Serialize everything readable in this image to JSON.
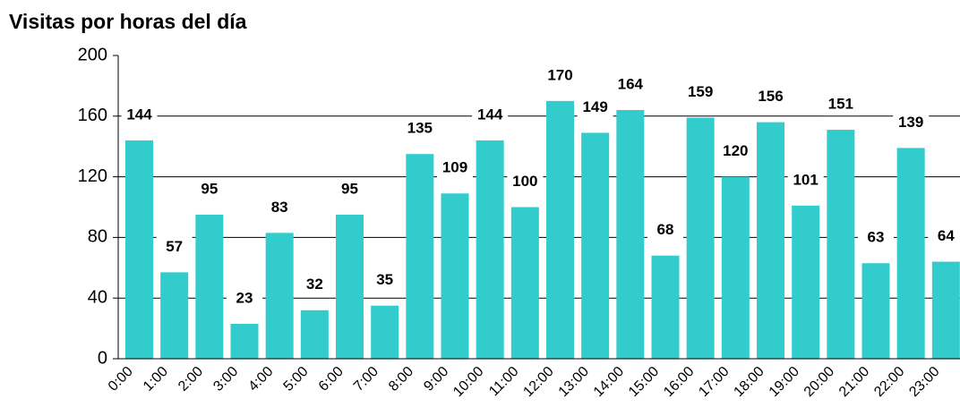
{
  "chart_data": {
    "type": "bar",
    "title": "Visitas por horas del día",
    "categories": [
      "0:00",
      "1:00",
      "2:00",
      "3:00",
      "4:00",
      "5:00",
      "6:00",
      "7:00",
      "8:00",
      "9:00",
      "10:00",
      "11:00",
      "12:00",
      "13:00",
      "14:00",
      "15:00",
      "16:00",
      "17:00",
      "18:00",
      "19:00",
      "20:00",
      "21:00",
      "22:00",
      "23:00"
    ],
    "values": [
      144,
      57,
      95,
      23,
      83,
      32,
      95,
      35,
      135,
      109,
      144,
      100,
      170,
      149,
      164,
      68,
      159,
      120,
      156,
      101,
      151,
      63,
      139,
      64
    ],
    "color": "#33cccc",
    "ylim": [
      0,
      200
    ],
    "yticks": [
      0,
      40,
      80,
      120,
      160,
      200
    ],
    "grid": true
  }
}
